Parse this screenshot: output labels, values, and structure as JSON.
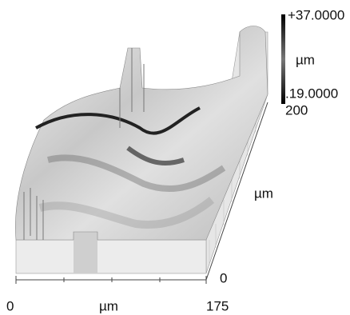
{
  "colorbar": {
    "max_label": "+37.0000",
    "unit": "µm",
    "min_label": ".19.0000"
  },
  "y_axis": {
    "end_label": "200",
    "unit": "µm",
    "start_label": "0"
  },
  "x_axis": {
    "start_label": "0",
    "unit": "µm",
    "end_label": "175"
  }
}
